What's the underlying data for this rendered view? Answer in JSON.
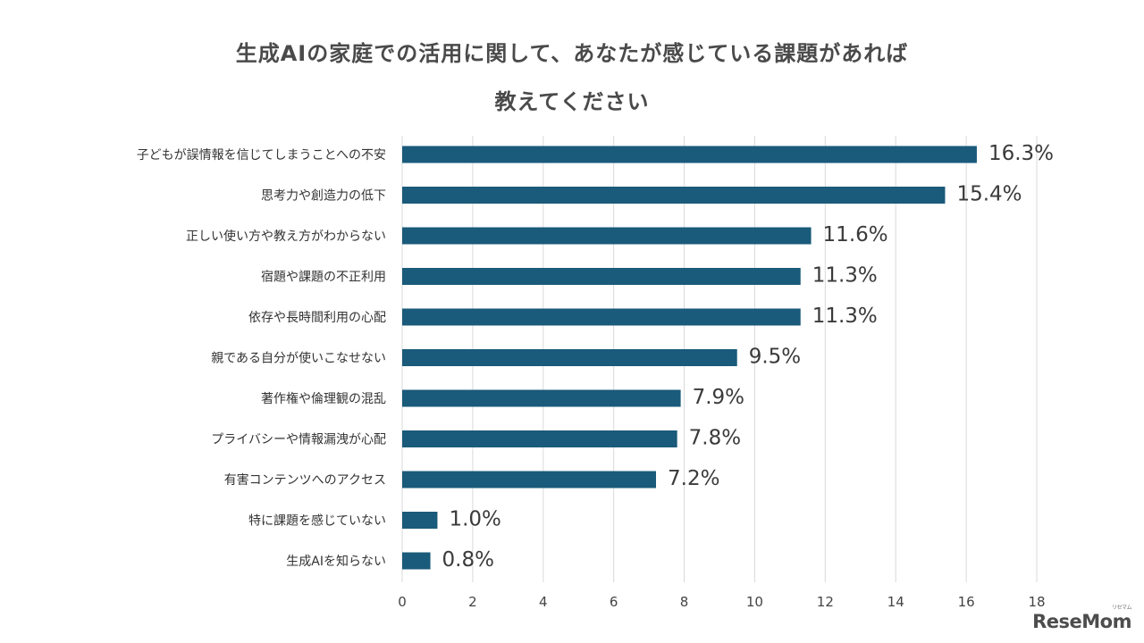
{
  "chart_data": {
    "type": "bar",
    "orientation": "horizontal",
    "title_line1": "生成AIの家庭での活用に関して、あなたが感じている課題があれば",
    "title_line2": "教えてください",
    "categories": [
      "子どもが誤情報を信じてしまうことへの不安",
      "思考力や創造力の低下",
      "正しい使い方や教え方がわからない",
      "宿題や課題の不正利用",
      "依存や長時間利用の心配",
      "親である自分が使いこなせない",
      "著作権や倫理観の混乱",
      "プライバシーや情報漏洩が心配",
      "有害コンテンツへのアクセス",
      "特に課題を感じていない",
      "生成AIを知らない"
    ],
    "values": [
      16.3,
      15.4,
      11.6,
      11.3,
      11.3,
      9.5,
      7.9,
      7.8,
      7.2,
      1.0,
      0.8
    ],
    "value_labels": [
      "16.3%",
      "15.4%",
      "11.6%",
      "11.3%",
      "11.3%",
      "9.5%",
      "7.9%",
      "7.8%",
      "7.2%",
      "1.0%",
      "0.8%"
    ],
    "xlim": [
      0,
      18
    ],
    "xticks": [
      0,
      2,
      4,
      6,
      8,
      10,
      12,
      14,
      16,
      18
    ],
    "grid": true,
    "bar_color": "#1a5a7a"
  },
  "logo": {
    "text": "ReseMom",
    "sub": "リセマム"
  }
}
